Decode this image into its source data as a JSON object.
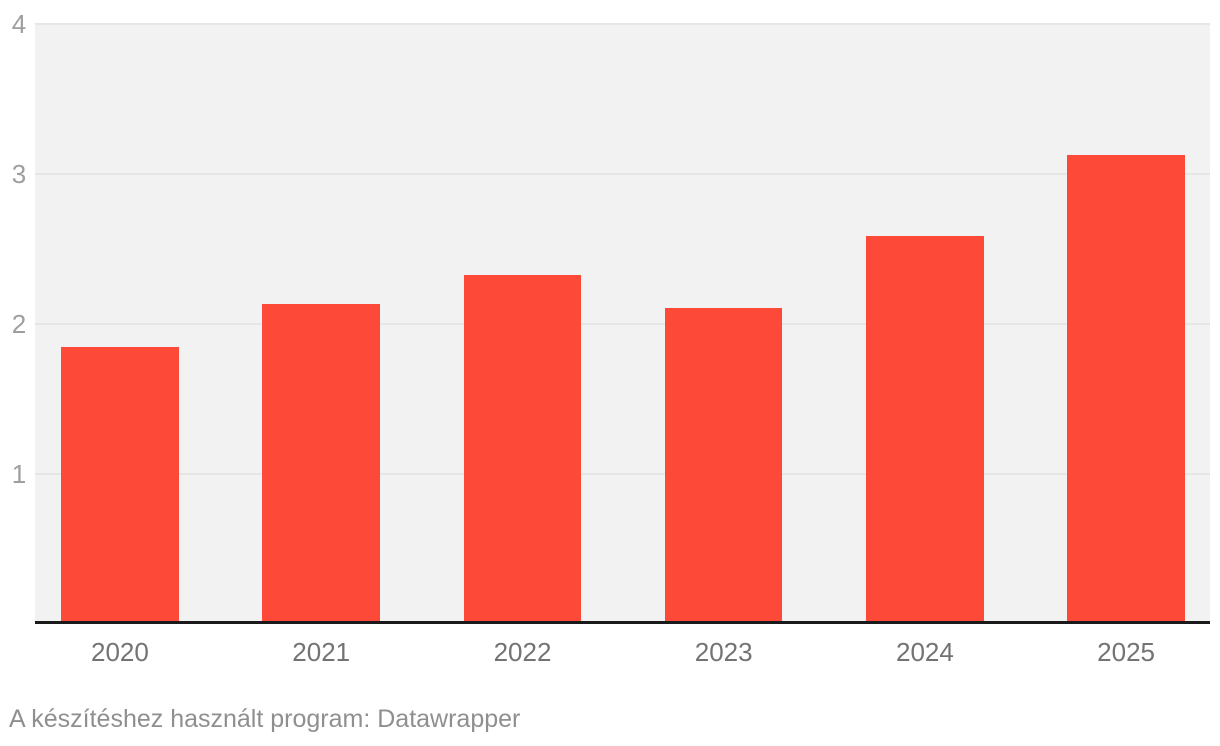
{
  "chart_data": {
    "type": "bar",
    "title": "",
    "xlabel": "",
    "ylabel": "",
    "categories": [
      "2020",
      "2021",
      "2022",
      "2023",
      "2024",
      "2025"
    ],
    "values": [
      1.84,
      2.13,
      2.32,
      2.1,
      2.58,
      3.12
    ],
    "ylim": [
      0,
      4
    ],
    "yticks": [
      1,
      2,
      3,
      4
    ],
    "grid": "horizontal-only",
    "legend": "none",
    "plot_background": "#f2f2f2",
    "bar_color": "#fd4937"
  },
  "footer": {
    "note": "A készítéshez használt program: Datawrapper"
  },
  "colors": {
    "bar": "#fd4937",
    "plot_bg": "#f2f2f2",
    "gridline": "#e6e6e6",
    "axis_line": "#1a1a1a",
    "y_label": "#9e9e9e",
    "x_label": "#737373",
    "footer_text": "#8f8f8f",
    "page_bg": "#ffffff"
  }
}
